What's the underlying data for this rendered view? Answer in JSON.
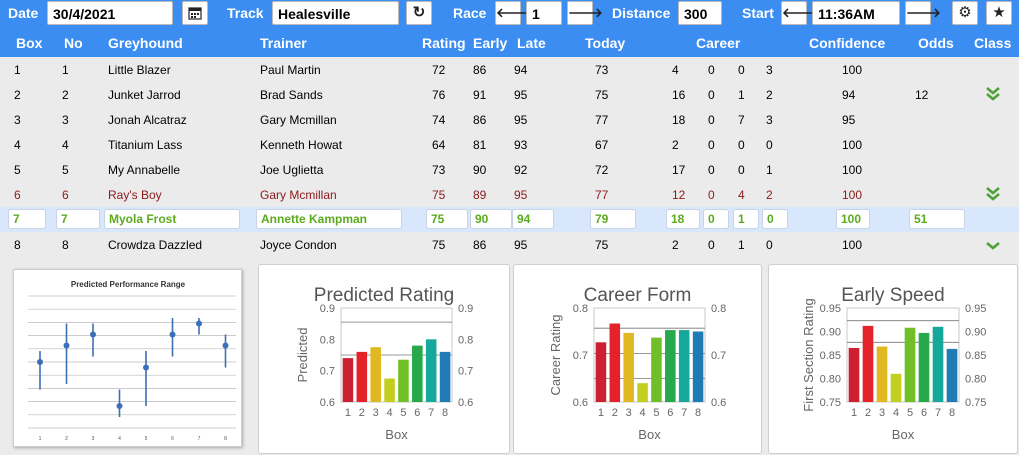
{
  "topbar": {
    "date_label": "Date",
    "date_value": "30/4/2021",
    "calendar_icon": "calendar-icon",
    "track_label": "Track",
    "track_value": "Healesville",
    "refresh_icon": "refresh-icon",
    "race_label": "Race",
    "race_value": "1",
    "distance_label": "Distance",
    "distance_value": "300",
    "start_label": "Start",
    "start_value": "11:36AM",
    "prev_icon": "arrow-left-icon",
    "next_icon": "arrow-right-icon",
    "settings_icon": "gear-icon",
    "favorite_icon": "star-icon"
  },
  "headers": {
    "box": "Box",
    "no": "No",
    "greyhound": "Greyhound",
    "trainer": "Trainer",
    "rating": "Rating",
    "early": "Early",
    "late": "Late",
    "today": "Today",
    "career": "Career",
    "confidence": "Confidence",
    "odds": "Odds",
    "class": "Class"
  },
  "rows": [
    {
      "box": "1",
      "no": "1",
      "name": "Little Blazer",
      "trainer": "Paul Martin",
      "rating": "72",
      "early": "86",
      "late": "94",
      "today": "73",
      "c1": "4",
      "c2": "0",
      "c3": "0",
      "c4": "3",
      "conf": "100",
      "odds": "",
      "cls": ""
    },
    {
      "box": "2",
      "no": "2",
      "name": "Junket Jarrod",
      "trainer": "Brad Sands",
      "rating": "76",
      "early": "91",
      "late": "95",
      "today": "75",
      "c1": "16",
      "c2": "0",
      "c3": "1",
      "c4": "2",
      "conf": "94",
      "odds": "12",
      "cls": "double-chevron-down-icon"
    },
    {
      "box": "3",
      "no": "3",
      "name": "Jonah Alcatraz",
      "trainer": "Gary Mcmillan",
      "rating": "74",
      "early": "86",
      "late": "95",
      "today": "77",
      "c1": "18",
      "c2": "0",
      "c3": "7",
      "c4": "3",
      "conf": "95",
      "odds": "",
      "cls": ""
    },
    {
      "box": "4",
      "no": "4",
      "name": "Titanium Lass",
      "trainer": "Kenneth Howat",
      "rating": "64",
      "early": "81",
      "late": "93",
      "today": "67",
      "c1": "2",
      "c2": "0",
      "c3": "0",
      "c4": "0",
      "conf": "100",
      "odds": "",
      "cls": ""
    },
    {
      "box": "5",
      "no": "5",
      "name": "My Annabelle",
      "trainer": "Joe Uglietta",
      "rating": "73",
      "early": "90",
      "late": "92",
      "today": "72",
      "c1": "17",
      "c2": "0",
      "c3": "0",
      "c4": "1",
      "conf": "100",
      "odds": "",
      "cls": ""
    },
    {
      "box": "6",
      "no": "6",
      "name": "Ray's Boy",
      "trainer": "Gary Mcmillan",
      "rating": "75",
      "early": "89",
      "late": "95",
      "today": "77",
      "c1": "12",
      "c2": "0",
      "c3": "4",
      "c4": "2",
      "conf": "100",
      "odds": "",
      "cls": "double-chevron-down-icon"
    },
    {
      "box": "7",
      "no": "7",
      "name": "Myola Frost",
      "trainer": "Annette Kampman",
      "rating": "75",
      "early": "90",
      "late": "94",
      "today": "79",
      "c1": "18",
      "c2": "0",
      "c3": "1",
      "c4": "0",
      "conf": "100",
      "odds": "51",
      "cls": ""
    },
    {
      "box": "8",
      "no": "8",
      "name": "Crowdza Dazzled",
      "trainer": "Joyce Condon",
      "rating": "75",
      "early": "86",
      "late": "95",
      "today": "75",
      "c1": "2",
      "c2": "0",
      "c3": "1",
      "c4": "0",
      "conf": "100",
      "odds": "",
      "cls": "chevron-down-icon"
    }
  ],
  "colors": {
    "header_blue": "#3b8df2",
    "selected_row": "#d8e7fb",
    "selected_text": "#5aab1e",
    "red_row_text": "#8b1a1a",
    "chevron": "#4fa23a"
  },
  "chart_data": [
    {
      "type": "scatter",
      "title": "Predicted Performance Range",
      "categories": [
        "1",
        "2",
        "3",
        "4",
        "5",
        "6",
        "7",
        "8"
      ],
      "series": [
        {
          "values": [
            70,
            73,
            75,
            62,
            69,
            75,
            77,
            73
          ],
          "low": [
            65,
            66,
            71,
            60,
            62,
            71,
            75,
            69
          ],
          "high": [
            72,
            77,
            77,
            65,
            72,
            78,
            78,
            75
          ]
        }
      ],
      "ylim": [
        58,
        82
      ]
    },
    {
      "type": "bar",
      "title": "Predicted Rating",
      "xlabel": "Box",
      "ylabel": "Predicted",
      "categories": [
        "1",
        "2",
        "3",
        "4",
        "5",
        "6",
        "7",
        "8"
      ],
      "values": [
        0.74,
        0.76,
        0.775,
        0.675,
        0.735,
        0.78,
        0.8,
        0.76
      ],
      "ylim": [
        0.6,
        0.9
      ],
      "yticks": [
        "0.6",
        "0.7",
        "0.8",
        "0.9"
      ],
      "reflines": [
        0.75,
        0.855
      ]
    },
    {
      "type": "bar",
      "title": "Career Form",
      "xlabel": "Box",
      "ylabel": "Career Rating",
      "categories": [
        "1",
        "2",
        "3",
        "4",
        "5",
        "6",
        "7",
        "8"
      ],
      "values": [
        0.727,
        0.767,
        0.747,
        0.64,
        0.737,
        0.753,
        0.753,
        0.75
      ],
      "ylim": [
        0.6,
        0.8
      ],
      "yticks": [
        "0.6",
        "0.7",
        "0.8"
      ],
      "reflines": [
        0.65,
        0.703,
        0.757
      ]
    },
    {
      "type": "bar",
      "title": "Early Speed",
      "xlabel": "Box",
      "ylabel": "First Section Rating",
      "categories": [
        "1",
        "2",
        "3",
        "4",
        "5",
        "6",
        "7",
        "8"
      ],
      "values": [
        0.865,
        0.912,
        0.868,
        0.81,
        0.908,
        0.897,
        0.91,
        0.863
      ],
      "ylim": [
        0.75,
        0.95
      ],
      "yticks": [
        "0.75",
        "0.80",
        "0.85",
        "0.90",
        "0.95"
      ],
      "reflines": [
        0.877,
        0.923
      ]
    }
  ]
}
